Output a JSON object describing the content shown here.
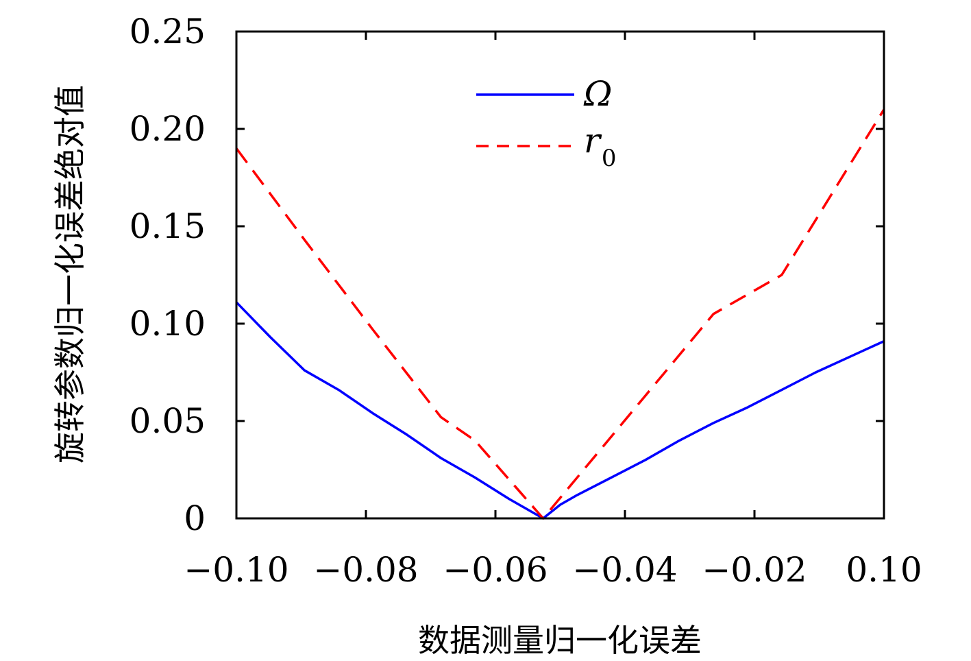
{
  "chart_data": {
    "type": "line",
    "xlabel": "数据测量归一化误差",
    "ylabel": "旋转参数归一化误差绝对值",
    "ylim": [
      0,
      0.25
    ],
    "x_tick_labels": [
      "−0.10",
      "−0.08",
      "−0.06",
      "−0.04",
      "−0.02",
      "0.10"
    ],
    "y_ticks": [
      0,
      0.05,
      0.1,
      0.15,
      0.2,
      0.25
    ],
    "y_tick_labels": [
      "0",
      "0.05",
      "0.10",
      "0.15",
      "0.20",
      "0.25"
    ],
    "legend_position": "top-center",
    "grid": false,
    "series": [
      {
        "name": "Ω",
        "color": "#0000ff",
        "style": "solid",
        "points": [
          [
            0.0,
            0.111
          ],
          [
            0.5,
            0.093
          ],
          [
            1.0,
            0.076
          ],
          [
            1.5,
            0.066
          ],
          [
            2.0,
            0.054
          ],
          [
            2.5,
            0.043
          ],
          [
            3.0,
            0.031
          ],
          [
            3.5,
            0.021
          ],
          [
            4.0,
            0.01
          ],
          [
            4.5,
            0.0
          ],
          [
            4.75,
            0.007
          ],
          [
            5.0,
            0.012
          ],
          [
            5.5,
            0.021
          ],
          [
            6.0,
            0.03
          ],
          [
            6.5,
            0.04
          ],
          [
            7.0,
            0.049
          ],
          [
            7.5,
            0.057
          ],
          [
            8.0,
            0.066
          ],
          [
            8.5,
            0.075
          ],
          [
            9.0,
            0.083
          ],
          [
            9.5,
            0.091
          ]
        ]
      },
      {
        "name": "r",
        "name_subscript": "0",
        "color": "#ff0000",
        "style": "dashed",
        "points": [
          [
            0.0,
            0.19
          ],
          [
            1.0,
            0.143
          ],
          [
            2.0,
            0.097
          ],
          [
            3.0,
            0.052
          ],
          [
            3.5,
            0.04
          ],
          [
            4.5,
            0.0
          ],
          [
            5.5,
            0.042
          ],
          [
            6.0,
            0.063
          ],
          [
            7.0,
            0.105
          ],
          [
            8.0,
            0.125
          ],
          [
            9.5,
            0.21
          ]
        ]
      }
    ]
  }
}
